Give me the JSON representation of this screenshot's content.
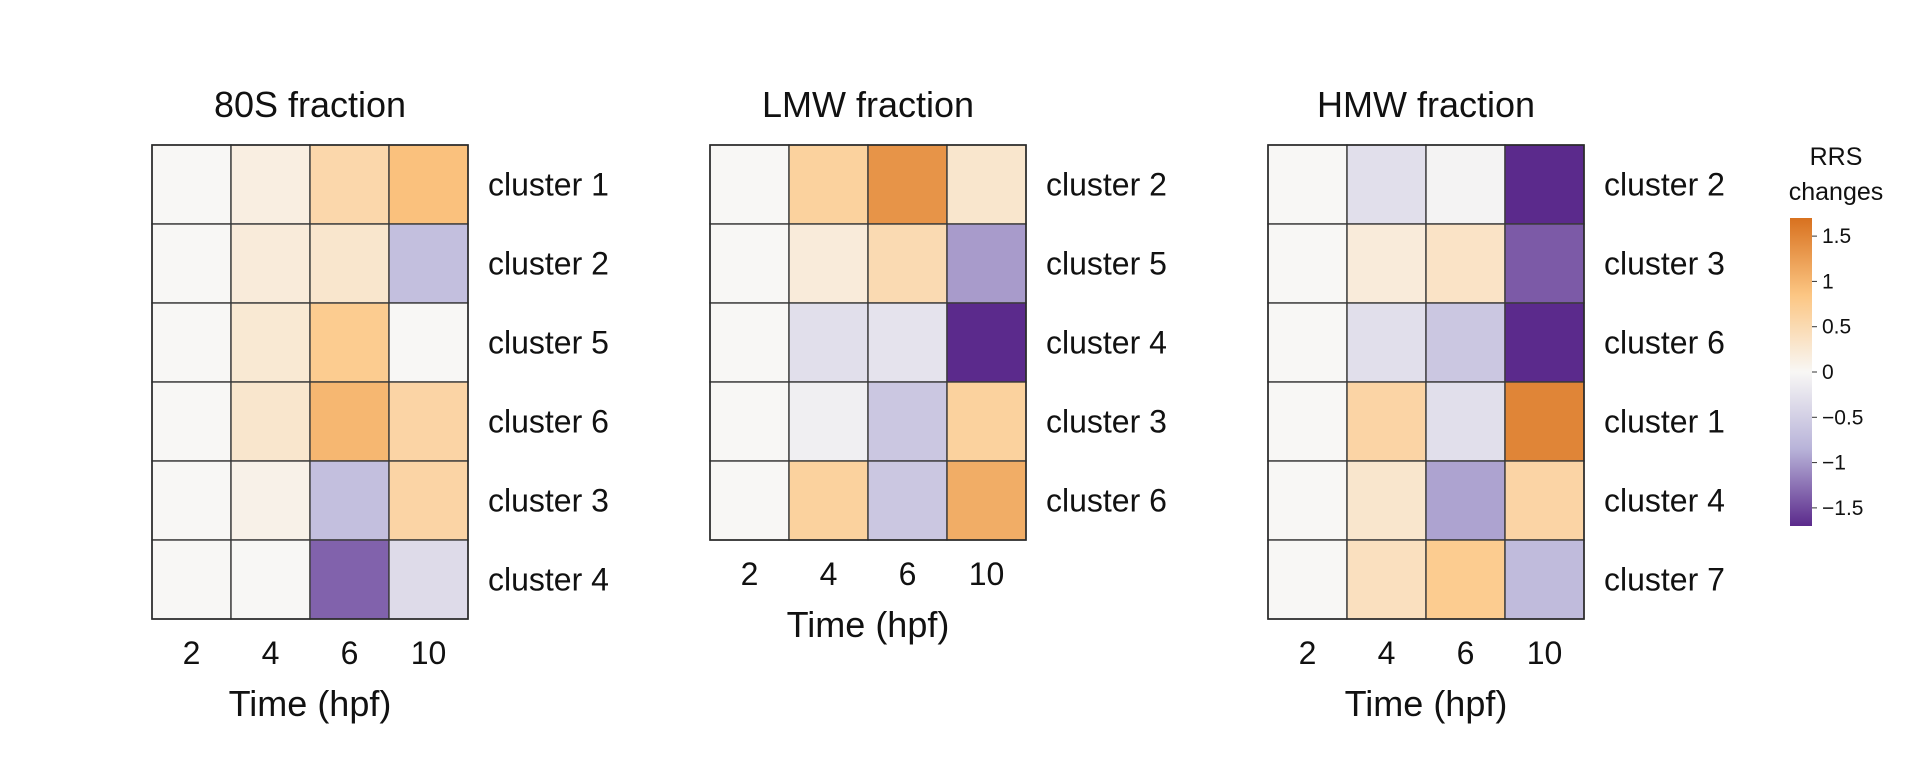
{
  "chart_data": [
    {
      "type": "heatmap",
      "title": "80S fraction",
      "xlabel": "Time (hpf)",
      "x": [
        "2",
        "4",
        "6",
        "10"
      ],
      "rows": [
        "cluster 1",
        "cluster 2",
        "cluster 5",
        "cluster 6",
        "cluster 3",
        "cluster 4"
      ],
      "values": [
        [
          0.0,
          0.15,
          0.55,
          0.9
        ],
        [
          0.0,
          0.2,
          0.3,
          -0.7
        ],
        [
          0.0,
          0.25,
          0.75,
          0.0
        ],
        [
          0.0,
          0.3,
          1.0,
          0.6
        ],
        [
          0.0,
          0.1,
          -0.7,
          0.6
        ],
        [
          0.0,
          0.0,
          -1.35,
          -0.35
        ]
      ]
    },
    {
      "type": "heatmap",
      "title": "LMW fraction",
      "xlabel": "Time (hpf)",
      "x": [
        "2",
        "4",
        "6",
        "10"
      ],
      "rows": [
        "cluster 2",
        "cluster 5",
        "cluster 4",
        "cluster 3",
        "cluster 6"
      ],
      "values": [
        [
          0.0,
          0.65,
          1.35,
          0.3
        ],
        [
          0.0,
          0.2,
          0.5,
          -1.0
        ],
        [
          0.0,
          -0.3,
          -0.25,
          -1.7
        ],
        [
          0.0,
          -0.1,
          -0.6,
          0.65
        ],
        [
          0.0,
          0.65,
          -0.6,
          1.1
        ]
      ]
    },
    {
      "type": "heatmap",
      "title": "HMW fraction",
      "xlabel": "Time (hpf)",
      "x": [
        "2",
        "4",
        "6",
        "10"
      ],
      "rows": [
        "cluster 2",
        "cluster 3",
        "cluster 6",
        "cluster 1",
        "cluster 4",
        "cluster 7"
      ],
      "values": [
        [
          0.0,
          -0.3,
          -0.05,
          -1.7
        ],
        [
          0.0,
          0.2,
          0.35,
          -1.4
        ],
        [
          0.0,
          -0.3,
          -0.6,
          -1.7
        ],
        [
          0.0,
          0.6,
          -0.3,
          1.5
        ],
        [
          0.0,
          0.3,
          -0.95,
          0.6
        ],
        [
          0.0,
          0.4,
          0.75,
          -0.75
        ]
      ]
    }
  ],
  "colorbar": {
    "title_line1": "RRS",
    "title_line2": "changes",
    "range": [
      -1.7,
      1.7
    ],
    "ticks": [
      {
        "value": 1.5,
        "label": "1.5"
      },
      {
        "value": 1,
        "label": "1"
      },
      {
        "value": 0.5,
        "label": "0.5"
      },
      {
        "value": 0,
        "label": "0"
      },
      {
        "value": -0.5,
        "label": "−0.5"
      },
      {
        "value": -1,
        "label": "−1"
      },
      {
        "value": -1.5,
        "label": "−1.5"
      }
    ],
    "colors": {
      "low": "#5b2a8c",
      "mid_low": "#b8b3d9",
      "mid": "#f8f7f5",
      "mid_high": "#fcc683",
      "high": "#d8711f"
    }
  }
}
